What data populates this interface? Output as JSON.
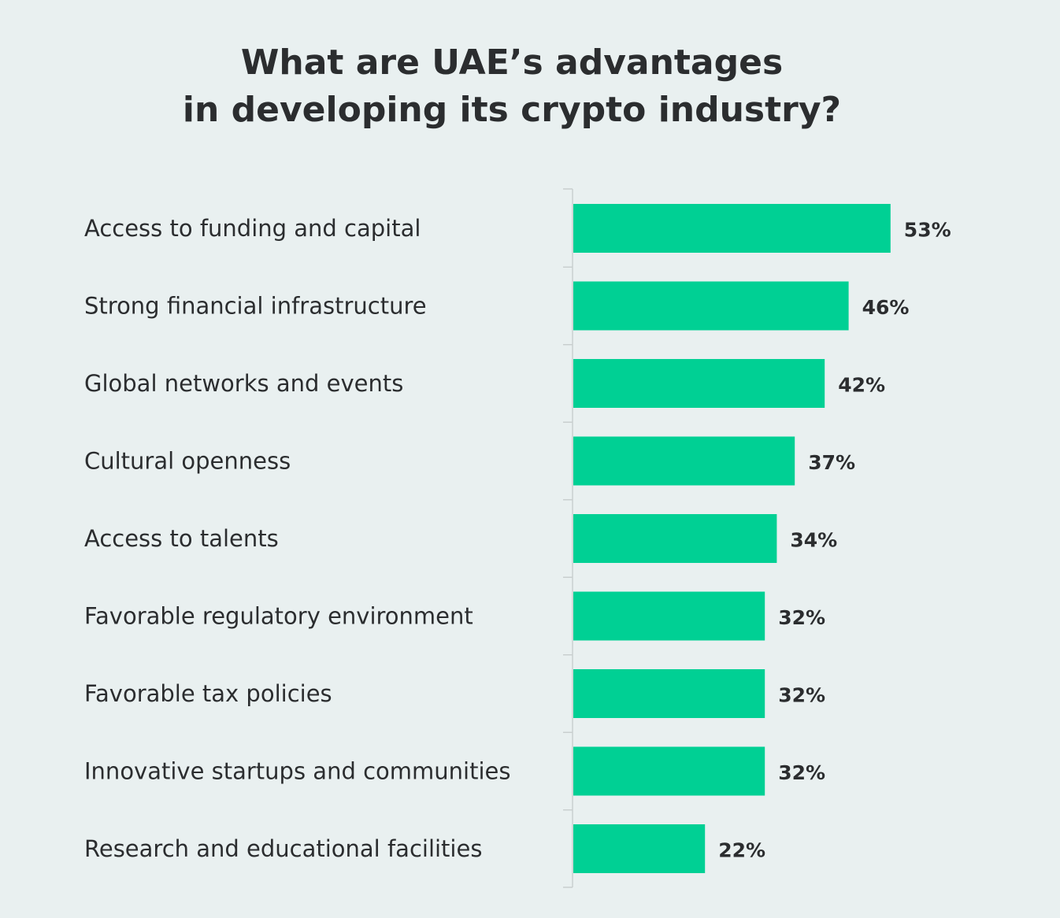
{
  "title_line1": "What are UAE’s advantages",
  "title_line2": "in developing its crypto industry?",
  "chart_data": {
    "type": "bar",
    "orientation": "horizontal",
    "categories": [
      "Access to funding and capital",
      "Strong financial infrastructure",
      "Global networks and events",
      "Cultural openness",
      "Access to talents",
      "Favorable regulatory environment",
      "Favorable tax policies",
      "Innovative startups and communities",
      "Research and educational facilities"
    ],
    "values": [
      53,
      46,
      42,
      37,
      34,
      32,
      32,
      32,
      22
    ],
    "value_labels": [
      "53%",
      "46%",
      "42%",
      "37%",
      "34%",
      "32%",
      "32%",
      "32%",
      "22%"
    ],
    "unit": "%",
    "grid": false,
    "legend": "none"
  },
  "colors": {
    "background": "#e9f0f0",
    "bar": "#00d094",
    "text": "#2b2d2f",
    "axis": "#c9cfcf"
  }
}
